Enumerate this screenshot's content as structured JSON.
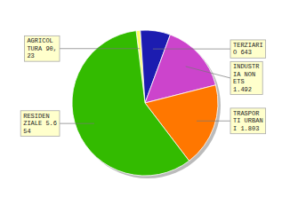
{
  "chart_data": {
    "type": "pie",
    "categories": [
      "AGRICOL\nTURA 90,\n23",
      "TERZIARI\nO 643",
      "INDUSTR\nIA NON\nETS\n1.492",
      "TRASPOR\nTI URBAN\nI 1.803",
      "RESIDEN\nZIALE 5.6\n54"
    ],
    "values": [
      90.23,
      643,
      1492,
      1803,
      5654
    ],
    "colors": [
      "#FFFF66",
      "#1C1CB0",
      "#CC44CC",
      "#FF7700",
      "#33BB00"
    ]
  }
}
